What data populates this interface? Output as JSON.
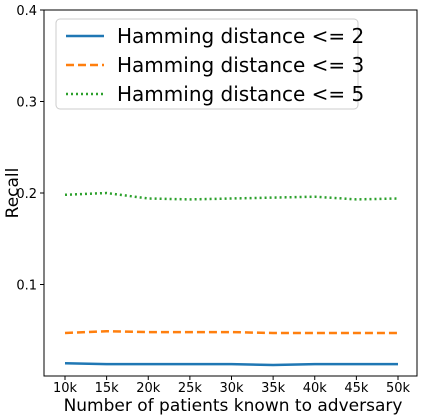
{
  "chart_data": {
    "type": "line",
    "title": "",
    "xlabel": "Number of patients known to adversary",
    "ylabel": "Recall",
    "categories": [
      "10k",
      "15k",
      "20k",
      "25k",
      "30k",
      "35k",
      "40k",
      "45k",
      "50k"
    ],
    "yticks": [
      "0.1",
      "0.2",
      "0.3",
      "0.4"
    ],
    "ytick_values": [
      0.1,
      0.2,
      0.3,
      0.4
    ],
    "ylim": [
      0.0,
      0.4
    ],
    "grid": false,
    "legend_position": "upper-left",
    "series": [
      {
        "name": "Hamming distance <= 2",
        "color": "#1f77b4",
        "style": "solid",
        "values": [
          0.014,
          0.013,
          0.013,
          0.013,
          0.013,
          0.012,
          0.013,
          0.013,
          0.013
        ]
      },
      {
        "name": "Hamming distance <= 3",
        "color": "#ff7f0e",
        "style": "dashed",
        "values": [
          0.047,
          0.049,
          0.048,
          0.048,
          0.048,
          0.047,
          0.047,
          0.047,
          0.047
        ]
      },
      {
        "name": "Hamming distance <= 5",
        "color": "#2ca02c",
        "style": "dotted",
        "values": [
          0.198,
          0.2,
          0.194,
          0.193,
          0.194,
          0.195,
          0.196,
          0.193,
          0.194
        ]
      }
    ]
  }
}
